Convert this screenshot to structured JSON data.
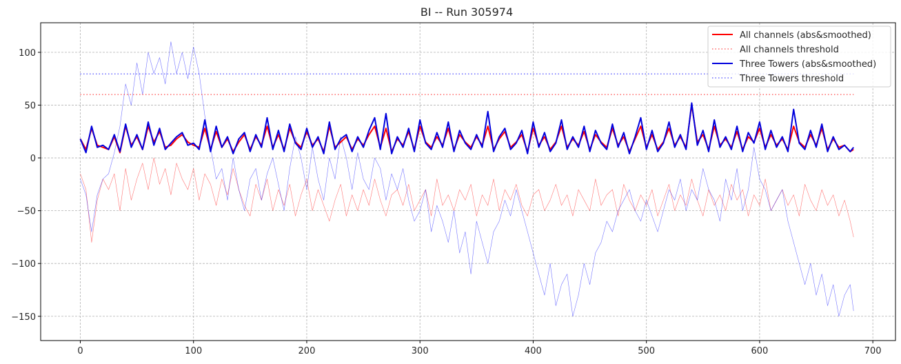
{
  "chart_data": {
    "type": "line",
    "title": "BI -- Run 305974",
    "xlabel": "",
    "ylabel": "",
    "xlim": [
      -35,
      720
    ],
    "ylim": [
      -173,
      128
    ],
    "x_ticks": [
      0,
      100,
      200,
      300,
      400,
      500,
      600,
      700
    ],
    "y_ticks": [
      -150,
      -100,
      -50,
      0,
      50,
      100
    ],
    "grid": true,
    "legend_position": "top-right",
    "colors": {
      "red": "#ff0000",
      "blue": "#0000dd"
    },
    "thresholds": [
      {
        "name": "All channels threshold",
        "y": 60,
        "x_range": [
          0,
          683
        ],
        "color": "#ff0000",
        "style": "dotted"
      },
      {
        "name": "Three Towers threshold",
        "y": 79.5,
        "x_range": [
          0,
          683
        ],
        "color": "#0000ff",
        "style": "dotted"
      }
    ],
    "series": [
      {
        "name": "All channels (abs&smoothed)",
        "color": "#ff0000",
        "style": "solid",
        "x": [
          0,
          5,
          10,
          15,
          20,
          25,
          30,
          35,
          40,
          45,
          50,
          55,
          60,
          65,
          70,
          75,
          80,
          85,
          90,
          95,
          100,
          105,
          110,
          115,
          120,
          125,
          130,
          135,
          140,
          145,
          150,
          155,
          160,
          165,
          170,
          175,
          180,
          185,
          190,
          195,
          200,
          205,
          210,
          215,
          220,
          225,
          230,
          235,
          240,
          245,
          250,
          255,
          260,
          265,
          270,
          275,
          280,
          285,
          290,
          295,
          300,
          305,
          310,
          315,
          320,
          325,
          330,
          335,
          340,
          345,
          350,
          355,
          360,
          365,
          370,
          375,
          380,
          385,
          390,
          395,
          400,
          405,
          410,
          415,
          420,
          425,
          430,
          435,
          440,
          445,
          450,
          455,
          460,
          465,
          470,
          475,
          480,
          485,
          490,
          495,
          500,
          505,
          510,
          515,
          520,
          525,
          530,
          535,
          540,
          545,
          550,
          555,
          560,
          565,
          570,
          575,
          580,
          585,
          590,
          595,
          600,
          605,
          610,
          615,
          620,
          625,
          630,
          635,
          640,
          645,
          650,
          655,
          660,
          665,
          670,
          675,
          680,
          683
        ],
        "y": [
          18,
          8,
          28,
          12,
          10,
          8,
          20,
          5,
          30,
          12,
          20,
          8,
          30,
          15,
          25,
          10,
          12,
          18,
          22,
          15,
          12,
          10,
          28,
          8,
          25,
          10,
          18,
          6,
          15,
          22,
          8,
          20,
          12,
          30,
          10,
          22,
          8,
          28,
          15,
          10,
          25,
          12,
          18,
          6,
          30,
          10,
          15,
          20,
          8,
          18,
          12,
          22,
          30,
          10,
          28,
          6,
          18,
          12,
          25,
          8,
          30,
          15,
          10,
          20,
          12,
          28,
          8,
          22,
          15,
          10,
          20,
          12,
          30,
          8,
          18,
          25,
          10,
          15,
          22,
          6,
          28,
          12,
          20,
          8,
          15,
          30,
          10,
          18,
          12,
          25,
          8,
          22,
          15,
          10,
          28,
          12,
          20,
          6,
          18,
          30,
          10,
          22,
          8,
          15,
          28,
          12,
          20,
          10,
          50,
          15,
          22,
          8,
          30,
          12,
          18,
          10,
          25,
          8,
          20,
          15,
          28,
          10,
          22,
          12,
          18,
          8,
          30,
          15,
          10,
          22,
          12,
          28,
          8,
          18,
          10,
          12,
          6,
          8
        ]
      },
      {
        "name": "All channels threshold",
        "color": "#ff0000",
        "style": "dotted"
      },
      {
        "name": "Three Towers (abs&smoothed)",
        "color": "#0000dd",
        "style": "solid",
        "x": [
          0,
          5,
          10,
          15,
          20,
          25,
          30,
          35,
          40,
          45,
          50,
          55,
          60,
          65,
          70,
          75,
          80,
          85,
          90,
          95,
          100,
          105,
          110,
          115,
          120,
          125,
          130,
          135,
          140,
          145,
          150,
          155,
          160,
          165,
          170,
          175,
          180,
          185,
          190,
          195,
          200,
          205,
          210,
          215,
          220,
          225,
          230,
          235,
          240,
          245,
          250,
          255,
          260,
          265,
          270,
          275,
          280,
          285,
          290,
          295,
          300,
          305,
          310,
          315,
          320,
          325,
          330,
          335,
          340,
          345,
          350,
          355,
          360,
          365,
          370,
          375,
          380,
          385,
          390,
          395,
          400,
          405,
          410,
          415,
          420,
          425,
          430,
          435,
          440,
          445,
          450,
          455,
          460,
          465,
          470,
          475,
          480,
          485,
          490,
          495,
          500,
          505,
          510,
          515,
          520,
          525,
          530,
          535,
          540,
          545,
          550,
          555,
          560,
          565,
          570,
          575,
          580,
          585,
          590,
          595,
          600,
          605,
          610,
          615,
          620,
          625,
          630,
          635,
          640,
          645,
          650,
          655,
          660,
          665,
          670,
          675,
          680,
          683
        ],
        "y": [
          18,
          5,
          30,
          10,
          12,
          8,
          22,
          6,
          32,
          10,
          22,
          8,
          34,
          12,
          28,
          8,
          14,
          20,
          24,
          12,
          14,
          8,
          36,
          6,
          30,
          10,
          20,
          4,
          18,
          24,
          6,
          22,
          10,
          38,
          8,
          26,
          6,
          32,
          14,
          8,
          28,
          10,
          20,
          4,
          34,
          8,
          18,
          22,
          6,
          20,
          10,
          26,
          38,
          8,
          42,
          4,
          20,
          10,
          28,
          6,
          36,
          14,
          8,
          24,
          10,
          34,
          6,
          26,
          14,
          8,
          22,
          10,
          44,
          6,
          20,
          28,
          8,
          14,
          26,
          4,
          34,
          10,
          24,
          6,
          14,
          36,
          8,
          20,
          10,
          30,
          6,
          26,
          14,
          8,
          32,
          10,
          24,
          4,
          20,
          38,
          8,
          26,
          6,
          14,
          34,
          10,
          22,
          8,
          52,
          12,
          26,
          6,
          36,
          10,
          20,
          8,
          30,
          6,
          24,
          14,
          34,
          8,
          26,
          10,
          20,
          6,
          46,
          14,
          8,
          26,
          10,
          32,
          6,
          20,
          8,
          12,
          6,
          10
        ]
      },
      {
        "name": "Three Towers threshold",
        "color": "#0000ff",
        "style": "dotted"
      }
    ],
    "raw_series": [
      {
        "color": "#ff0000",
        "x": [
          0,
          5,
          10,
          15,
          20,
          25,
          30,
          35,
          40,
          45,
          50,
          55,
          60,
          65,
          70,
          75,
          80,
          85,
          90,
          95,
          100,
          105,
          110,
          115,
          120,
          125,
          130,
          135,
          140,
          145,
          150,
          155,
          160,
          165,
          170,
          175,
          180,
          185,
          190,
          195,
          200,
          205,
          210,
          215,
          220,
          225,
          230,
          235,
          240,
          245,
          250,
          255,
          260,
          265,
          270,
          275,
          280,
          285,
          290,
          295,
          300,
          305,
          310,
          315,
          320,
          325,
          330,
          335,
          340,
          345,
          350,
          355,
          360,
          365,
          370,
          375,
          380,
          385,
          390,
          395,
          400,
          405,
          410,
          415,
          420,
          425,
          430,
          435,
          440,
          445,
          450,
          455,
          460,
          465,
          470,
          475,
          480,
          485,
          490,
          495,
          500,
          505,
          510,
          515,
          520,
          525,
          530,
          535,
          540,
          545,
          550,
          555,
          560,
          565,
          570,
          575,
          580,
          585,
          590,
          595,
          600,
          605,
          610,
          615,
          620,
          625,
          630,
          635,
          640,
          645,
          650,
          655,
          660,
          665,
          670,
          675,
          680,
          683
        ],
        "y": [
          -15,
          -30,
          -80,
          -40,
          -20,
          -30,
          -15,
          -50,
          -10,
          -40,
          -20,
          -5,
          -30,
          0,
          -25,
          -10,
          -35,
          -5,
          -20,
          -30,
          -10,
          -40,
          -15,
          -25,
          -45,
          -20,
          -35,
          -10,
          -30,
          -45,
          -55,
          -25,
          -40,
          -20,
          -50,
          -30,
          -45,
          -25,
          -55,
          -35,
          -20,
          -50,
          -30,
          -45,
          -60,
          -40,
          -25,
          -55,
          -35,
          -50,
          -30,
          -45,
          -20,
          -40,
          -55,
          -35,
          -30,
          -45,
          -25,
          -50,
          -40,
          -30,
          -55,
          -20,
          -45,
          -35,
          -50,
          -30,
          -40,
          -25,
          -55,
          -35,
          -45,
          -20,
          -50,
          -30,
          -40,
          -25,
          -45,
          -55,
          -35,
          -30,
          -50,
          -40,
          -25,
          -45,
          -35,
          -55,
          -30,
          -40,
          -50,
          -20,
          -45,
          -35,
          -30,
          -55,
          -25,
          -40,
          -50,
          -35,
          -45,
          -30,
          -55,
          -40,
          -25,
          -50,
          -35,
          -45,
          -20,
          -40,
          -55,
          -30,
          -45,
          -35,
          -50,
          -25,
          -40,
          -30,
          -55,
          -35,
          -45,
          -20,
          -50,
          -40,
          -30,
          -45,
          -35,
          -55,
          -25,
          -40,
          -50,
          -30,
          -45,
          -35,
          -55,
          -40,
          -60,
          -75
        ]
      },
      {
        "color": "#0000ff",
        "x": [
          0,
          5,
          10,
          15,
          20,
          25,
          30,
          35,
          40,
          45,
          50,
          55,
          60,
          65,
          70,
          75,
          80,
          85,
          90,
          95,
          100,
          105,
          110,
          115,
          120,
          125,
          130,
          135,
          140,
          145,
          150,
          155,
          160,
          165,
          170,
          175,
          180,
          185,
          190,
          195,
          200,
          205,
          210,
          215,
          220,
          225,
          230,
          235,
          240,
          245,
          250,
          255,
          260,
          265,
          270,
          275,
          280,
          285,
          290,
          295,
          300,
          305,
          310,
          315,
          320,
          325,
          330,
          335,
          340,
          345,
          350,
          355,
          360,
          365,
          370,
          375,
          380,
          385,
          390,
          395,
          400,
          405,
          410,
          415,
          420,
          425,
          430,
          435,
          440,
          445,
          450,
          455,
          460,
          465,
          470,
          475,
          480,
          485,
          490,
          495,
          500,
          505,
          510,
          515,
          520,
          525,
          530,
          535,
          540,
          545,
          550,
          555,
          560,
          565,
          570,
          575,
          580,
          585,
          590,
          595,
          600,
          605,
          610,
          615,
          620,
          625,
          630,
          635,
          640,
          645,
          650,
          655,
          660,
          665,
          670,
          675,
          680,
          683
        ],
        "y": [
          -20,
          -35,
          -70,
          -35,
          -20,
          -15,
          5,
          30,
          70,
          50,
          90,
          60,
          100,
          80,
          95,
          70,
          110,
          80,
          100,
          75,
          105,
          80,
          40,
          10,
          -20,
          -10,
          -40,
          0,
          -30,
          -50,
          -20,
          -10,
          -40,
          -15,
          0,
          -25,
          -50,
          -10,
          20,
          0,
          -30,
          10,
          -20,
          -40,
          0,
          -20,
          20,
          0,
          -30,
          5,
          -20,
          -30,
          0,
          -10,
          -40,
          -15,
          -30,
          -10,
          -40,
          -60,
          -50,
          -30,
          -70,
          -45,
          -60,
          -80,
          -50,
          -90,
          -70,
          -110,
          -60,
          -80,
          -100,
          -70,
          -60,
          -40,
          -55,
          -30,
          -50,
          -70,
          -90,
          -110,
          -130,
          -100,
          -140,
          -120,
          -110,
          -150,
          -130,
          -100,
          -120,
          -90,
          -80,
          -60,
          -70,
          -50,
          -40,
          -30,
          -50,
          -60,
          -40,
          -55,
          -70,
          -50,
          -30,
          -40,
          -20,
          -50,
          -30,
          -40,
          -10,
          -30,
          -40,
          -60,
          -20,
          -40,
          -10,
          -50,
          -30,
          10,
          -20,
          -30,
          -50,
          -40,
          -30,
          -60,
          -80,
          -100,
          -120,
          -100,
          -130,
          -110,
          -140,
          -120,
          -150,
          -130,
          -120,
          -145
        ]
      }
    ]
  }
}
